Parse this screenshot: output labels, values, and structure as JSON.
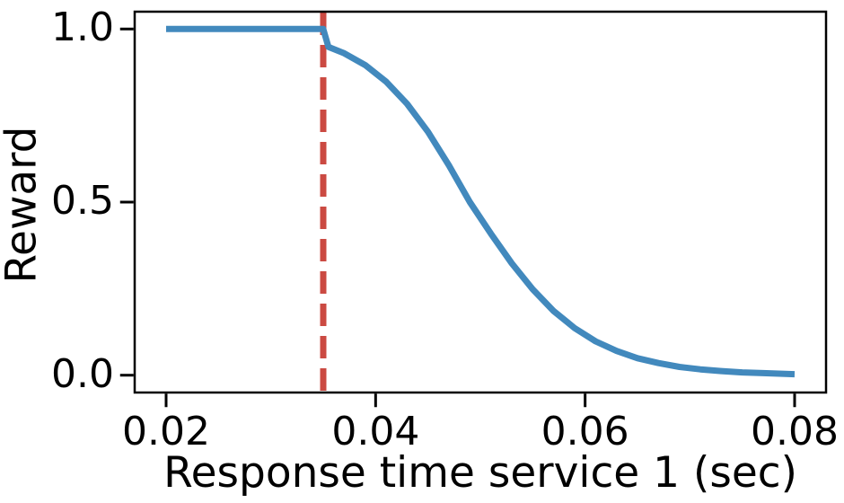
{
  "figure": {
    "background": "#ffffff"
  },
  "chart_data": {
    "type": "line",
    "xlabel": "Response time service 1 (sec)",
    "ylabel": "Reward",
    "xlim": [
      0.017,
      0.083
    ],
    "ylim": [
      -0.05,
      1.05
    ],
    "grid": false,
    "legend": "none",
    "axis_color": "#000000",
    "x_ticks": {
      "values": [
        0.02,
        0.04,
        0.06,
        0.08
      ],
      "labels": [
        "0.02",
        "0.04",
        "0.06",
        "0.08"
      ]
    },
    "y_ticks": {
      "values": [
        0.0,
        0.5,
        1.0
      ],
      "labels": [
        "0.0",
        "0.5",
        "1.0"
      ]
    },
    "series": [
      {
        "name": "reward",
        "type": "line",
        "color": "#4289bd",
        "linewidth": 7,
        "x": [
          0.02,
          0.035,
          0.0355,
          0.037,
          0.039,
          0.041,
          0.043,
          0.045,
          0.047,
          0.049,
          0.051,
          0.053,
          0.055,
          0.057,
          0.059,
          0.061,
          0.063,
          0.065,
          0.067,
          0.069,
          0.071,
          0.073,
          0.075,
          0.077,
          0.08
        ],
        "y": [
          1.0,
          1.0,
          0.948,
          0.93,
          0.896,
          0.848,
          0.784,
          0.703,
          0.606,
          0.5,
          0.409,
          0.323,
          0.248,
          0.185,
          0.136,
          0.098,
          0.07,
          0.049,
          0.035,
          0.024,
          0.017,
          0.012,
          0.008,
          0.006,
          0.003
        ]
      }
    ],
    "reference_lines": [
      {
        "name": "response-time-threshold",
        "orientation": "vertical",
        "x": 0.035,
        "style": "dashed",
        "dash": [
          25,
          11
        ],
        "color": "#cb4a42",
        "linewidth": 7
      }
    ]
  }
}
